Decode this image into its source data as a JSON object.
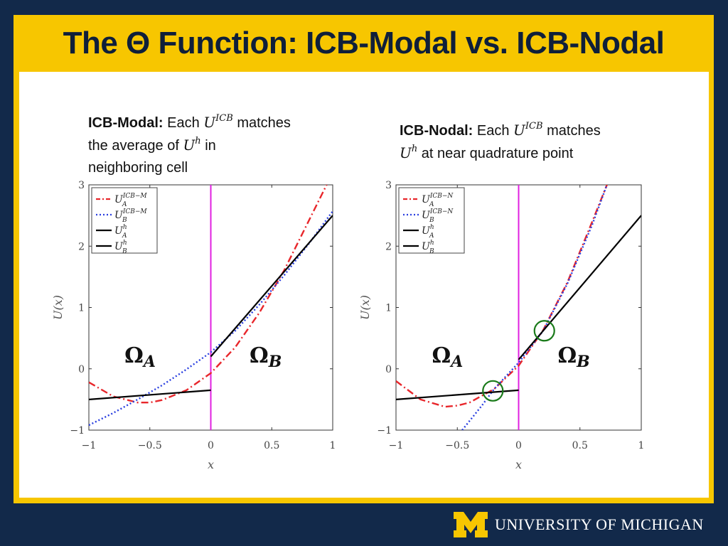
{
  "slide": {
    "title": "The Θ Function: ICB-Modal vs. ICB-Nodal",
    "footer_logo": "UNIVERSITY OF MICHIGAN",
    "colors": {
      "navy": "#12294a",
      "maize": "#f7c600"
    }
  },
  "captions": {
    "left": {
      "lead": "ICB-Modal:",
      "each": "Each",
      "u": "U",
      "icb": "ICB",
      "matches": "matches",
      "line2": "the average of",
      "uh": "U",
      "h": "h",
      "in": "in",
      "line3": "neighboring cell"
    },
    "right": {
      "lead": "ICB-Nodal:",
      "each": "Each",
      "u": "U",
      "icb": "ICB",
      "matches": "matches",
      "uh": "U",
      "h": "h",
      "rest": "at near quadrature point"
    }
  },
  "chart_data": [
    {
      "type": "line",
      "xlabel": "x",
      "ylabel": "U(x)",
      "xlim": [
        -1,
        1
      ],
      "ylim": [
        -1,
        3
      ],
      "xticks": [
        "−1",
        "−0.5",
        "0",
        "0.5",
        "1"
      ],
      "yticks": [
        "−1",
        "0",
        "1",
        "2",
        "3"
      ],
      "regions": {
        "a": "Ω",
        "a_sub": "A",
        "b": "Ω",
        "b_sub": "B"
      },
      "interface_x": 0,
      "legend": [
        "U_A^{ICB−M}",
        "U_B^{ICB−M}",
        "U_A^h",
        "U_B^h"
      ],
      "legend_entries": [
        {
          "base": "U",
          "sup": "ICB−M",
          "sub": "A"
        },
        {
          "base": "U",
          "sup": "ICB−M",
          "sub": "B"
        },
        {
          "base": "U",
          "sup": "h",
          "sub": "A"
        },
        {
          "base": "U",
          "sup": "h",
          "sub": "B"
        }
      ],
      "series": [
        {
          "name": "U_A^{ICB−M}",
          "style": "dashdot",
          "color": "#e8262b",
          "x": [
            -1,
            -0.8,
            -0.6,
            -0.5,
            -0.4,
            -0.2,
            0,
            0.2,
            0.4,
            0.6,
            0.8,
            0.95
          ],
          "y": [
            -0.22,
            -0.45,
            -0.55,
            -0.55,
            -0.51,
            -0.35,
            -0.07,
            0.35,
            0.92,
            1.6,
            2.4,
            3.0
          ]
        },
        {
          "name": "U_B^{ICB−M}",
          "style": "dotted",
          "color": "#2a3fe0",
          "x": [
            -1,
            -0.8,
            -0.6,
            -0.4,
            -0.2,
            0,
            0.2,
            0.4,
            0.6,
            0.8,
            1
          ],
          "y": [
            -0.92,
            -0.72,
            -0.5,
            -0.27,
            -0.01,
            0.27,
            0.62,
            1.05,
            1.52,
            2.03,
            2.57
          ]
        },
        {
          "name": "U_A^h",
          "style": "solid",
          "color": "#000000",
          "x": [
            -1,
            0
          ],
          "y": [
            -0.5,
            -0.35
          ]
        },
        {
          "name": "U_B^h",
          "style": "solid",
          "color": "#000000",
          "x": [
            0,
            1
          ],
          "y": [
            0.2,
            2.5
          ]
        }
      ],
      "markers": []
    },
    {
      "type": "line",
      "xlabel": "x",
      "ylabel": "U(x)",
      "xlim": [
        -1,
        1
      ],
      "ylim": [
        -1,
        3
      ],
      "xticks": [
        "−1",
        "−0.5",
        "0",
        "0.5",
        "1"
      ],
      "yticks": [
        "−1",
        "0",
        "1",
        "2",
        "3"
      ],
      "regions": {
        "a": "Ω",
        "a_sub": "A",
        "b": "Ω",
        "b_sub": "B"
      },
      "interface_x": 0,
      "legend": [
        "U_A^{ICB−N}",
        "U_B^{ICB−N}",
        "U_A^h",
        "U_B^h"
      ],
      "legend_entries": [
        {
          "base": "U",
          "sup": "ICB−N",
          "sub": "A"
        },
        {
          "base": "U",
          "sup": "ICB−N",
          "sub": "B"
        },
        {
          "base": "U",
          "sup": "h",
          "sub": "A"
        },
        {
          "base": "U",
          "sup": "h",
          "sub": "B"
        }
      ],
      "series": [
        {
          "name": "U_A^{ICB−N}",
          "style": "dashdot",
          "color": "#e8262b",
          "x": [
            -1,
            -0.8,
            -0.6,
            -0.5,
            -0.4,
            -0.2,
            0,
            0.2,
            0.4,
            0.6,
            0.72
          ],
          "y": [
            -0.2,
            -0.5,
            -0.62,
            -0.6,
            -0.55,
            -0.33,
            0.05,
            0.63,
            1.42,
            2.4,
            3.0
          ]
        },
        {
          "name": "U_B^{ICB−N}",
          "style": "dotted",
          "color": "#2a3fe0",
          "x": [
            -0.46,
            -0.3,
            -0.2,
            0,
            0.2,
            0.4,
            0.6,
            0.72
          ],
          "y": [
            -1.0,
            -0.6,
            -0.33,
            0.1,
            0.62,
            1.4,
            2.35,
            3.0
          ]
        },
        {
          "name": "U_A^h",
          "style": "solid",
          "color": "#000000",
          "x": [
            -1,
            0
          ],
          "y": [
            -0.5,
            -0.35
          ]
        },
        {
          "name": "U_B^h",
          "style": "solid",
          "color": "#000000",
          "x": [
            0,
            1
          ],
          "y": [
            0.15,
            2.5
          ]
        }
      ],
      "markers": [
        {
          "x": -0.21,
          "y": -0.36,
          "color": "#1a7a1a"
        },
        {
          "x": 0.21,
          "y": 0.62,
          "color": "#1a7a1a"
        }
      ]
    }
  ]
}
